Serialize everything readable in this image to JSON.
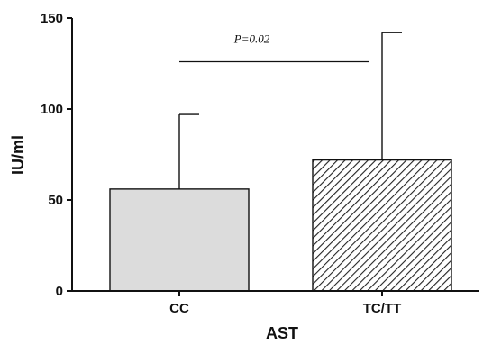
{
  "chart_data": {
    "type": "bar",
    "title": "",
    "xlabel": "AST",
    "ylabel": "IU/ml",
    "ylim": [
      0,
      150
    ],
    "yticks": [
      0,
      50,
      100,
      150
    ],
    "grid": false,
    "categories": [
      "CC",
      "TC/TT"
    ],
    "values": [
      56,
      72
    ],
    "error_upper": [
      97,
      142
    ],
    "fill_patterns": [
      "solid",
      "diagonal-hatch"
    ],
    "colors": {
      "bar_cc": "#dcdcdc",
      "bar_hatch_bg": "#ffffff",
      "hatch_line": "#222222",
      "axis": "#111111"
    },
    "annotation": {
      "text": "P=0.02",
      "from_category": "CC",
      "to_category": "TC/TT",
      "y": 126
    }
  }
}
